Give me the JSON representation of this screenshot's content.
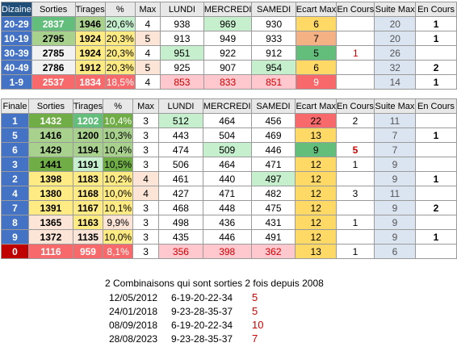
{
  "headers1": [
    "Dizaine",
    "Sorties",
    "Tirages",
    "%",
    "Max",
    "LUNDI",
    "MERCREDI",
    "SAMEDI",
    "Ecart Max",
    "En Cours",
    "Suite Max",
    "En Cours"
  ],
  "headers2": [
    "Finale",
    "Sorties",
    "Tirages",
    "%",
    "Max",
    "LUNDI",
    "MERCREDI",
    "SAMEDI",
    "Ecart Max",
    "En Cours",
    "Suite Max",
    "En Cours"
  ],
  "dizaine_rows": [
    [
      "20-29",
      "2837",
      "1946",
      "20,6%",
      "4",
      "938",
      "969",
      "930",
      "6",
      "",
      "20",
      "1"
    ],
    [
      "10-19",
      "2795",
      "1924",
      "20,3%",
      "5",
      "913",
      "949",
      "933",
      "7",
      "",
      "20",
      "1"
    ],
    [
      "30-39",
      "2785",
      "1924",
      "20,3%",
      "4",
      "951",
      "922",
      "912",
      "5",
      "1",
      "26",
      ""
    ],
    [
      "40-49",
      "2786",
      "1912",
      "20,3%",
      "5",
      "925",
      "907",
      "954",
      "6",
      "",
      "32",
      "2"
    ],
    [
      "1-9",
      "2537",
      "1834",
      "18,5%",
      "4",
      "853",
      "833",
      "851",
      "9",
      "",
      "14",
      "1"
    ]
  ],
  "finale_rows": [
    [
      "1",
      "1432",
      "1202",
      "10,4%",
      "3",
      "512",
      "464",
      "456",
      "22",
      "2",
      "11",
      ""
    ],
    [
      "5",
      "1416",
      "1200",
      "10,3%",
      "3",
      "443",
      "504",
      "469",
      "13",
      "",
      "7",
      "1"
    ],
    [
      "6",
      "1429",
      "1194",
      "10,4%",
      "3",
      "474",
      "509",
      "446",
      "9",
      "5",
      "7",
      ""
    ],
    [
      "3",
      "1441",
      "1191",
      "10,5%",
      "3",
      "506",
      "464",
      "471",
      "12",
      "1",
      "9",
      ""
    ],
    [
      "2",
      "1398",
      "1183",
      "10,2%",
      "4",
      "461",
      "440",
      "497",
      "12",
      "",
      "9",
      "1"
    ],
    [
      "4",
      "1380",
      "1168",
      "10,0%",
      "4",
      "427",
      "471",
      "482",
      "12",
      "3",
      "11",
      ""
    ],
    [
      "7",
      "1391",
      "1167",
      "10,1%",
      "3",
      "468",
      "448",
      "475",
      "12",
      "",
      "9",
      "2"
    ],
    [
      "8",
      "1365",
      "1163",
      "9,9%",
      "3",
      "498",
      "436",
      "431",
      "12",
      "1",
      "9",
      ""
    ],
    [
      "9",
      "1372",
      "1135",
      "10,0%",
      "3",
      "435",
      "446",
      "491",
      "12",
      "",
      "9",
      "1"
    ],
    [
      "0",
      "1116",
      "959",
      "8,1%",
      "3",
      "356",
      "398",
      "362",
      "13",
      "1",
      "6",
      ""
    ]
  ],
  "combos": {
    "title": "2 Combinaisons qui sont sorties 2 fois depuis 2008",
    "rows": [
      {
        "date": "12/05/2012",
        "nums": "6-19-20-22-34",
        "count": "5"
      },
      {
        "date": "24/01/2018",
        "nums": "9-23-28-35-37",
        "count": "5"
      },
      {
        "date": "08/09/2018",
        "nums": "6-19-20-22-34",
        "count": "10"
      },
      {
        "date": "28/08/2023",
        "nums": "9-23-28-35-37",
        "count": "7"
      }
    ]
  },
  "colors": {
    "header_dark": "#1f4e79",
    "label_blue": "#4472c4",
    "green_dark": "#63be7b",
    "green_mid": "#a9d18e",
    "green_light": "#c6efce",
    "yellow": "#ffeb84",
    "orange_light": "#f8cbad",
    "red_mid": "#f8696b",
    "red_light": "#ffc7ce",
    "blue_light": "#dbe5f1"
  }
}
